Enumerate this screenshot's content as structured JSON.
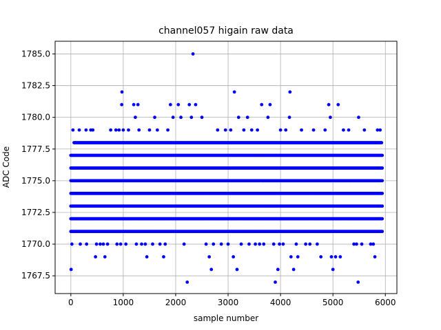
{
  "chart_data": {
    "type": "scatter",
    "title": "channel057 higain raw data",
    "xlabel": "sample number",
    "ylabel": "ADC Code",
    "xlim": [
      -300,
      6220
    ],
    "ylim": [
      1766.1,
      1786.0
    ],
    "x_ticks": [
      0,
      1000,
      2000,
      3000,
      4000,
      5000,
      6000
    ],
    "x_tick_labels": [
      "0",
      "1000",
      "2000",
      "3000",
      "4000",
      "5000",
      "6000"
    ],
    "y_ticks": [
      1767.5,
      1770.0,
      1772.5,
      1775.0,
      1777.5,
      1780.0,
      1782.5,
      1785.0
    ],
    "y_tick_labels": [
      "1767.5",
      "1770.0",
      "1772.5",
      "1775.0",
      "1777.5",
      "1780.0",
      "1782.5",
      "1785.0"
    ],
    "grid": true,
    "marker_color": "#0000ff",
    "n_samples": 5940,
    "dense_levels": [
      {
        "y": 1773,
        "x_range": [
          0,
          5940
        ]
      },
      {
        "y": 1774,
        "x_range": [
          0,
          5940
        ]
      },
      {
        "y": 1775,
        "x_range": [
          0,
          5940
        ]
      },
      {
        "y": 1776,
        "x_range": [
          0,
          5940
        ]
      },
      {
        "y": 1772,
        "x_range": [
          0,
          5940
        ]
      },
      {
        "y": 1777,
        "x_range": [
          0,
          5940
        ]
      },
      {
        "y": 1771,
        "x_range": [
          0,
          5940
        ]
      },
      {
        "y": 1778,
        "x_range": [
          60,
          5940
        ]
      }
    ],
    "sparse_points": [
      {
        "x": 5,
        "y": 1768
      },
      {
        "x": 20,
        "y": 1770
      },
      {
        "x": 40,
        "y": 1779
      },
      {
        "x": 160,
        "y": 1779
      },
      {
        "x": 180,
        "y": 1770
      },
      {
        "x": 290,
        "y": 1779
      },
      {
        "x": 300,
        "y": 1770
      },
      {
        "x": 380,
        "y": 1779
      },
      {
        "x": 420,
        "y": 1779
      },
      {
        "x": 470,
        "y": 1769
      },
      {
        "x": 490,
        "y": 1770
      },
      {
        "x": 560,
        "y": 1770
      },
      {
        "x": 620,
        "y": 1770
      },
      {
        "x": 650,
        "y": 1769
      },
      {
        "x": 700,
        "y": 1770
      },
      {
        "x": 760,
        "y": 1779
      },
      {
        "x": 860,
        "y": 1779
      },
      {
        "x": 880,
        "y": 1770
      },
      {
        "x": 920,
        "y": 1779
      },
      {
        "x": 950,
        "y": 1770
      },
      {
        "x": 970,
        "y": 1781
      },
      {
        "x": 975,
        "y": 1782
      },
      {
        "x": 1000,
        "y": 1779
      },
      {
        "x": 1050,
        "y": 1770
      },
      {
        "x": 1100,
        "y": 1779
      },
      {
        "x": 1200,
        "y": 1781
      },
      {
        "x": 1230,
        "y": 1780
      },
      {
        "x": 1250,
        "y": 1770
      },
      {
        "x": 1280,
        "y": 1781
      },
      {
        "x": 1300,
        "y": 1779
      },
      {
        "x": 1350,
        "y": 1770
      },
      {
        "x": 1420,
        "y": 1770
      },
      {
        "x": 1450,
        "y": 1769
      },
      {
        "x": 1500,
        "y": 1779
      },
      {
        "x": 1560,
        "y": 1770
      },
      {
        "x": 1600,
        "y": 1780
      },
      {
        "x": 1650,
        "y": 1779
      },
      {
        "x": 1700,
        "y": 1770
      },
      {
        "x": 1770,
        "y": 1769
      },
      {
        "x": 1800,
        "y": 1770
      },
      {
        "x": 1850,
        "y": 1779
      },
      {
        "x": 1900,
        "y": 1781
      },
      {
        "x": 1950,
        "y": 1780
      },
      {
        "x": 2050,
        "y": 1781
      },
      {
        "x": 2100,
        "y": 1780
      },
      {
        "x": 2160,
        "y": 1770
      },
      {
        "x": 2220,
        "y": 1767
      },
      {
        "x": 2260,
        "y": 1781
      },
      {
        "x": 2300,
        "y": 1780
      },
      {
        "x": 2330,
        "y": 1785
      },
      {
        "x": 2380,
        "y": 1781
      },
      {
        "x": 2500,
        "y": 1780
      },
      {
        "x": 2580,
        "y": 1770
      },
      {
        "x": 2640,
        "y": 1769
      },
      {
        "x": 2680,
        "y": 1768
      },
      {
        "x": 2720,
        "y": 1770
      },
      {
        "x": 2800,
        "y": 1779
      },
      {
        "x": 2870,
        "y": 1770
      },
      {
        "x": 2950,
        "y": 1779
      },
      {
        "x": 3000,
        "y": 1770
      },
      {
        "x": 3050,
        "y": 1779
      },
      {
        "x": 3100,
        "y": 1769
      },
      {
        "x": 3120,
        "y": 1782
      },
      {
        "x": 3170,
        "y": 1768
      },
      {
        "x": 3200,
        "y": 1780
      },
      {
        "x": 3250,
        "y": 1770
      },
      {
        "x": 3300,
        "y": 1779
      },
      {
        "x": 3370,
        "y": 1780
      },
      {
        "x": 3400,
        "y": 1770
      },
      {
        "x": 3450,
        "y": 1779
      },
      {
        "x": 3520,
        "y": 1770
      },
      {
        "x": 3560,
        "y": 1779
      },
      {
        "x": 3600,
        "y": 1770
      },
      {
        "x": 3640,
        "y": 1781
      },
      {
        "x": 3680,
        "y": 1770
      },
      {
        "x": 3760,
        "y": 1780
      },
      {
        "x": 3800,
        "y": 1781
      },
      {
        "x": 3870,
        "y": 1770
      },
      {
        "x": 3900,
        "y": 1767
      },
      {
        "x": 3950,
        "y": 1768
      },
      {
        "x": 3980,
        "y": 1770
      },
      {
        "x": 4000,
        "y": 1779
      },
      {
        "x": 4050,
        "y": 1770
      },
      {
        "x": 4100,
        "y": 1779
      },
      {
        "x": 4170,
        "y": 1780
      },
      {
        "x": 4180,
        "y": 1782
      },
      {
        "x": 4200,
        "y": 1769
      },
      {
        "x": 4250,
        "y": 1768
      },
      {
        "x": 4300,
        "y": 1770
      },
      {
        "x": 4330,
        "y": 1769
      },
      {
        "x": 4400,
        "y": 1779
      },
      {
        "x": 4480,
        "y": 1770
      },
      {
        "x": 4560,
        "y": 1770
      },
      {
        "x": 4630,
        "y": 1779
      },
      {
        "x": 4700,
        "y": 1770
      },
      {
        "x": 4770,
        "y": 1769
      },
      {
        "x": 4850,
        "y": 1779
      },
      {
        "x": 4920,
        "y": 1781
      },
      {
        "x": 4950,
        "y": 1780
      },
      {
        "x": 4970,
        "y": 1769
      },
      {
        "x": 5000,
        "y": 1768
      },
      {
        "x": 5050,
        "y": 1769
      },
      {
        "x": 5100,
        "y": 1781
      },
      {
        "x": 5140,
        "y": 1769
      },
      {
        "x": 5200,
        "y": 1779
      },
      {
        "x": 5300,
        "y": 1779
      },
      {
        "x": 5400,
        "y": 1770
      },
      {
        "x": 5450,
        "y": 1770
      },
      {
        "x": 5480,
        "y": 1767
      },
      {
        "x": 5490,
        "y": 1780
      },
      {
        "x": 5550,
        "y": 1770
      },
      {
        "x": 5600,
        "y": 1779
      },
      {
        "x": 5720,
        "y": 1770
      },
      {
        "x": 5770,
        "y": 1770
      },
      {
        "x": 5800,
        "y": 1769
      },
      {
        "x": 5850,
        "y": 1779
      },
      {
        "x": 5900,
        "y": 1779
      }
    ]
  }
}
